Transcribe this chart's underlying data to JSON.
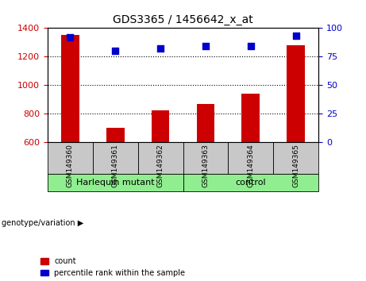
{
  "title": "GDS3365 / 1456642_x_at",
  "samples": [
    "GSM149360",
    "GSM149361",
    "GSM149362",
    "GSM149363",
    "GSM149364",
    "GSM149365"
  ],
  "counts": [
    1350,
    700,
    825,
    870,
    940,
    1280
  ],
  "percentile_ranks": [
    92,
    80,
    82,
    84,
    84,
    93
  ],
  "ylim_left": [
    600,
    1400
  ],
  "ylim_right": [
    0,
    100
  ],
  "yticks_left": [
    600,
    800,
    1000,
    1200,
    1400
  ],
  "yticks_right": [
    0,
    25,
    50,
    75,
    100
  ],
  "bar_color": "#CC0000",
  "scatter_color": "#0000CC",
  "bg_color": "#C8C8C8",
  "group_bg_color": "#90EE90",
  "legend_count_color": "#CC0000",
  "legend_pct_color": "#0000CC",
  "left_axis_color": "#CC0000",
  "right_axis_color": "#0000CC",
  "groups": [
    {
      "label": "Harlequin mutant",
      "start": 0,
      "end": 2
    },
    {
      "label": "control",
      "start": 3,
      "end": 5
    }
  ],
  "genotype_label": "genotype/variation"
}
